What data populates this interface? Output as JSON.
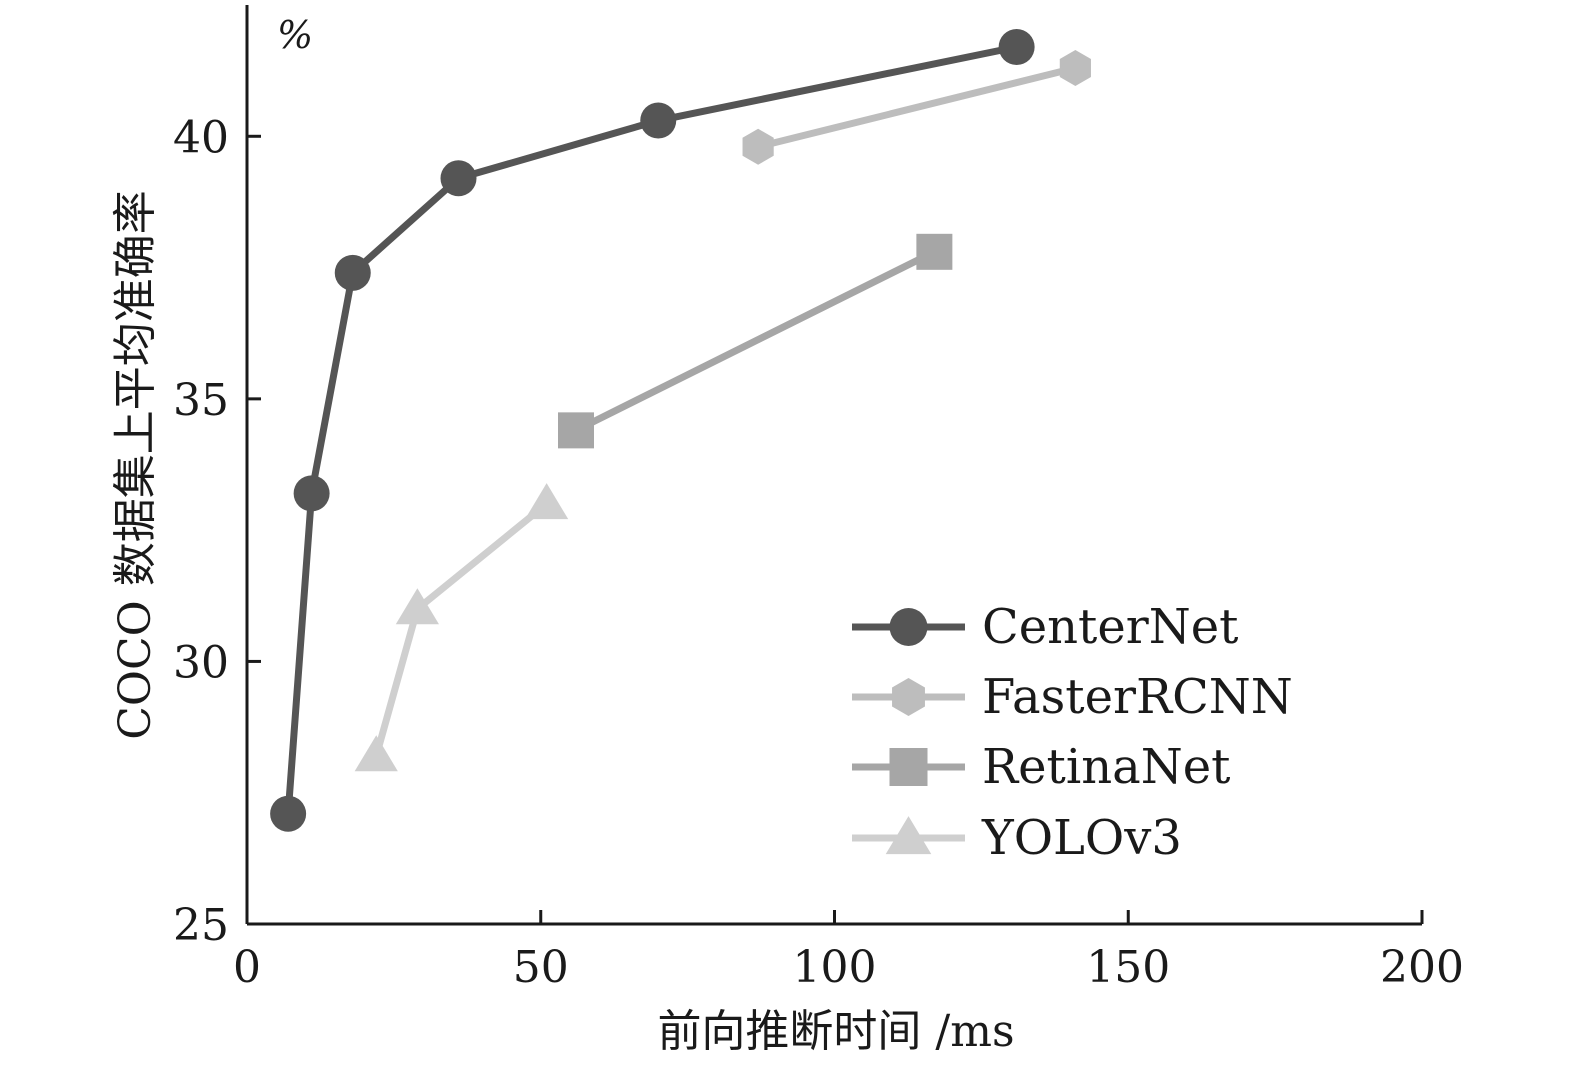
{
  "chart_data": {
    "type": "line",
    "xlabel": "前向推断时间 /ms",
    "ylabel": "COCO 数据集上平均准确率",
    "y_unit": "%",
    "xlim": [
      0,
      200
    ],
    "ylim": [
      25,
      42.5
    ],
    "xticks": [
      0,
      50,
      100,
      150,
      200
    ],
    "yticks": [
      25,
      30,
      35,
      40
    ],
    "grid": false,
    "legend_position": "bottom-right",
    "series": [
      {
        "name": "CenterNet",
        "marker": "circle",
        "color": "#555555",
        "x": [
          7,
          11,
          18,
          36,
          70,
          131
        ],
        "y": [
          27.1,
          33.2,
          37.4,
          39.2,
          40.3,
          41.7
        ]
      },
      {
        "name": "FasterRCNN",
        "marker": "hexagon",
        "color": "#bdbdbd",
        "x": [
          87,
          141
        ],
        "y": [
          39.8,
          41.3
        ]
      },
      {
        "name": "RetinaNet",
        "marker": "square",
        "color": "#a6a6a6",
        "x": [
          56,
          117
        ],
        "y": [
          34.4,
          37.8
        ]
      },
      {
        "name": "YOLOv3",
        "marker": "triangle",
        "color": "#cfcfcf",
        "x": [
          22,
          29,
          51
        ],
        "y": [
          28.2,
          31.0,
          33.0
        ]
      }
    ]
  }
}
